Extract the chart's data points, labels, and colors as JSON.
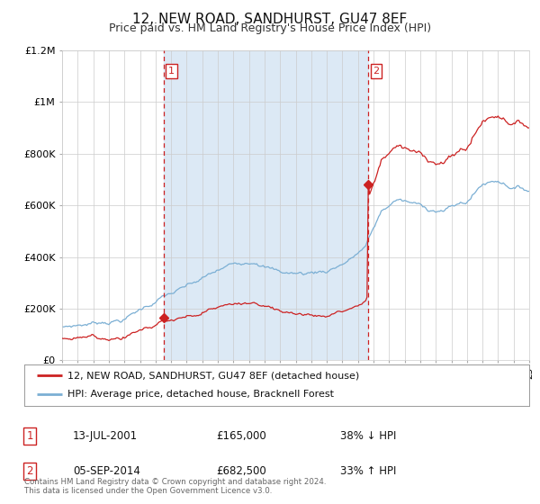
{
  "title": "12, NEW ROAD, SANDHURST, GU47 8EF",
  "subtitle": "Price paid vs. HM Land Registry's House Price Index (HPI)",
  "red_color": "#cc2222",
  "blue_color": "#7bafd4",
  "span_color": "#dce9f5",
  "grid_color": "#cccccc",
  "bg_color": "#ffffff",
  "annotation1": [
    "1",
    "13-JUL-2001",
    "£165,000",
    "38% ↓ HPI"
  ],
  "annotation2": [
    "2",
    "05-SEP-2014",
    "£682,500",
    "33% ↑ HPI"
  ],
  "legend1": "12, NEW ROAD, SANDHURST, GU47 8EF (detached house)",
  "legend2": "HPI: Average price, detached house, Bracknell Forest",
  "footer": "Contains HM Land Registry data © Crown copyright and database right 2024.\nThis data is licensed under the Open Government Licence v3.0.",
  "xmin": 1995,
  "xmax": 2025,
  "ymin": 0,
  "ymax": 1200000,
  "yticks": [
    0,
    200000,
    400000,
    600000,
    800000,
    1000000,
    1200000
  ],
  "ytick_labels": [
    "£0",
    "£200K",
    "£400K",
    "£600K",
    "£800K",
    "£1M",
    "£1.2M"
  ],
  "sale1_yr": 2001.536,
  "sale1_val": 165000,
  "sale2_yr": 2014.674,
  "sale2_val": 682500
}
